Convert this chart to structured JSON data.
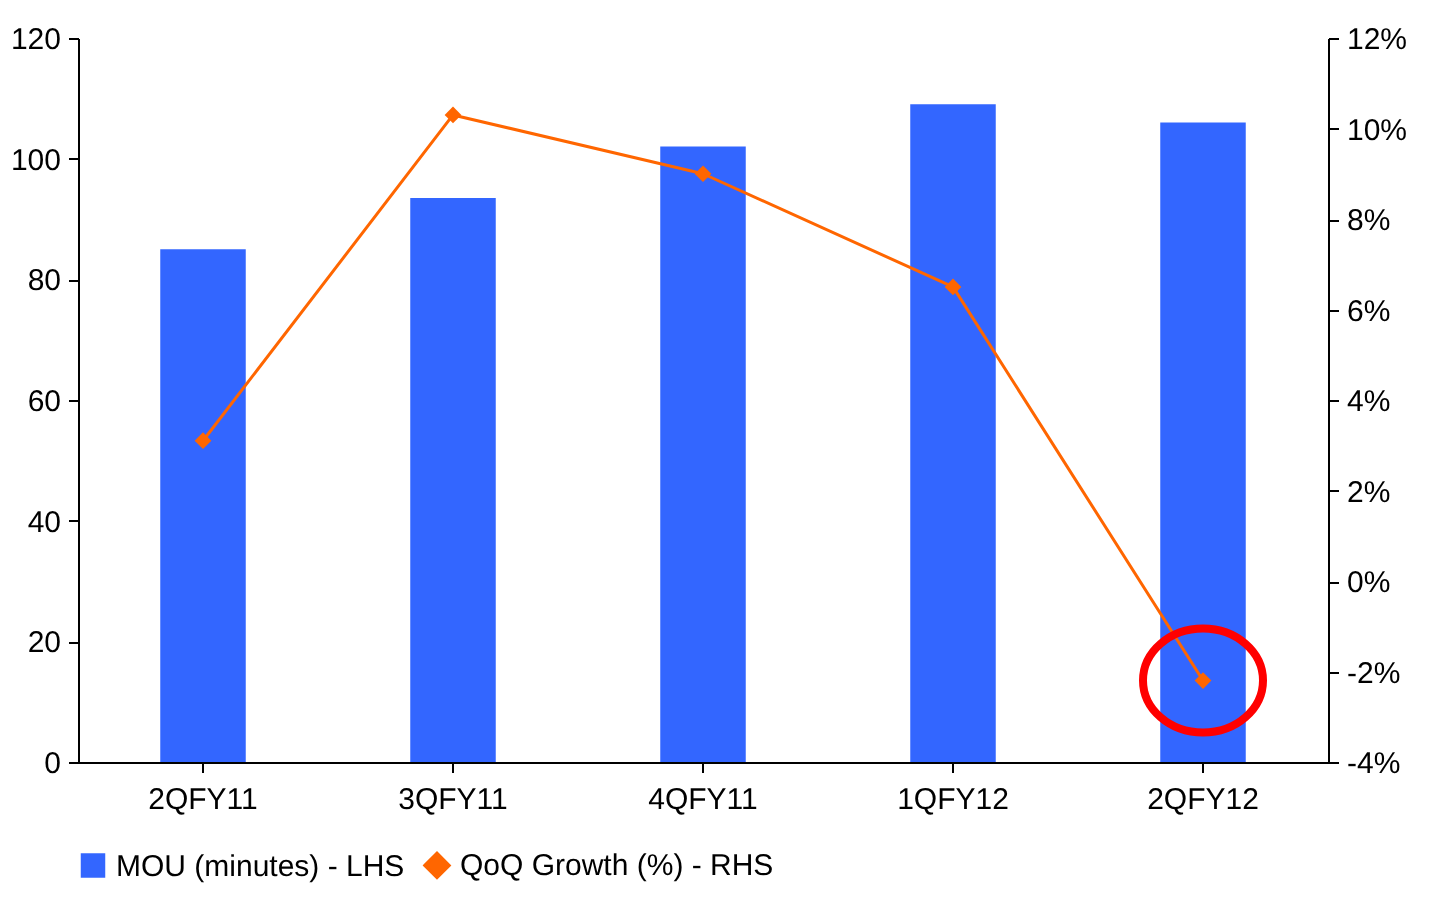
{
  "chart_data": {
    "type": "bar",
    "categories": [
      "2QFY11",
      "3QFY11",
      "4QFY11",
      "1QFY12",
      "2QFY12"
    ],
    "series": [
      {
        "name": "MOU (minutes) - LHS",
        "color": "#3366ff",
        "values": [
          85,
          93.5,
          102,
          109,
          106
        ]
      },
      {
        "name": "QoQ Growth (%) - RHS",
        "type": "line",
        "axis": "y2",
        "color": "#ff6600",
        "values": [
          3.1,
          10.3,
          9.0,
          6.5,
          -2.2
        ]
      }
    ],
    "ylim": [
      0,
      120
    ],
    "yticks": [
      0,
      20,
      40,
      60,
      80,
      100,
      120
    ],
    "y2lim": [
      -4,
      12
    ],
    "y2ticks": [
      {
        "value": -4,
        "label": "-4%"
      },
      {
        "value": -2,
        "label": "-2%"
      },
      {
        "value": 0,
        "label": "0%"
      },
      {
        "value": 2,
        "label": "2%"
      },
      {
        "value": 4,
        "label": "4%"
      },
      {
        "value": 6,
        "label": "6%"
      },
      {
        "value": 8,
        "label": "8%"
      },
      {
        "value": 10,
        "label": "10%"
      },
      {
        "value": 12,
        "label": "12%"
      }
    ],
    "grid": false,
    "legend": "bottom",
    "marker": "diamond",
    "line_style": "solid"
  }
}
